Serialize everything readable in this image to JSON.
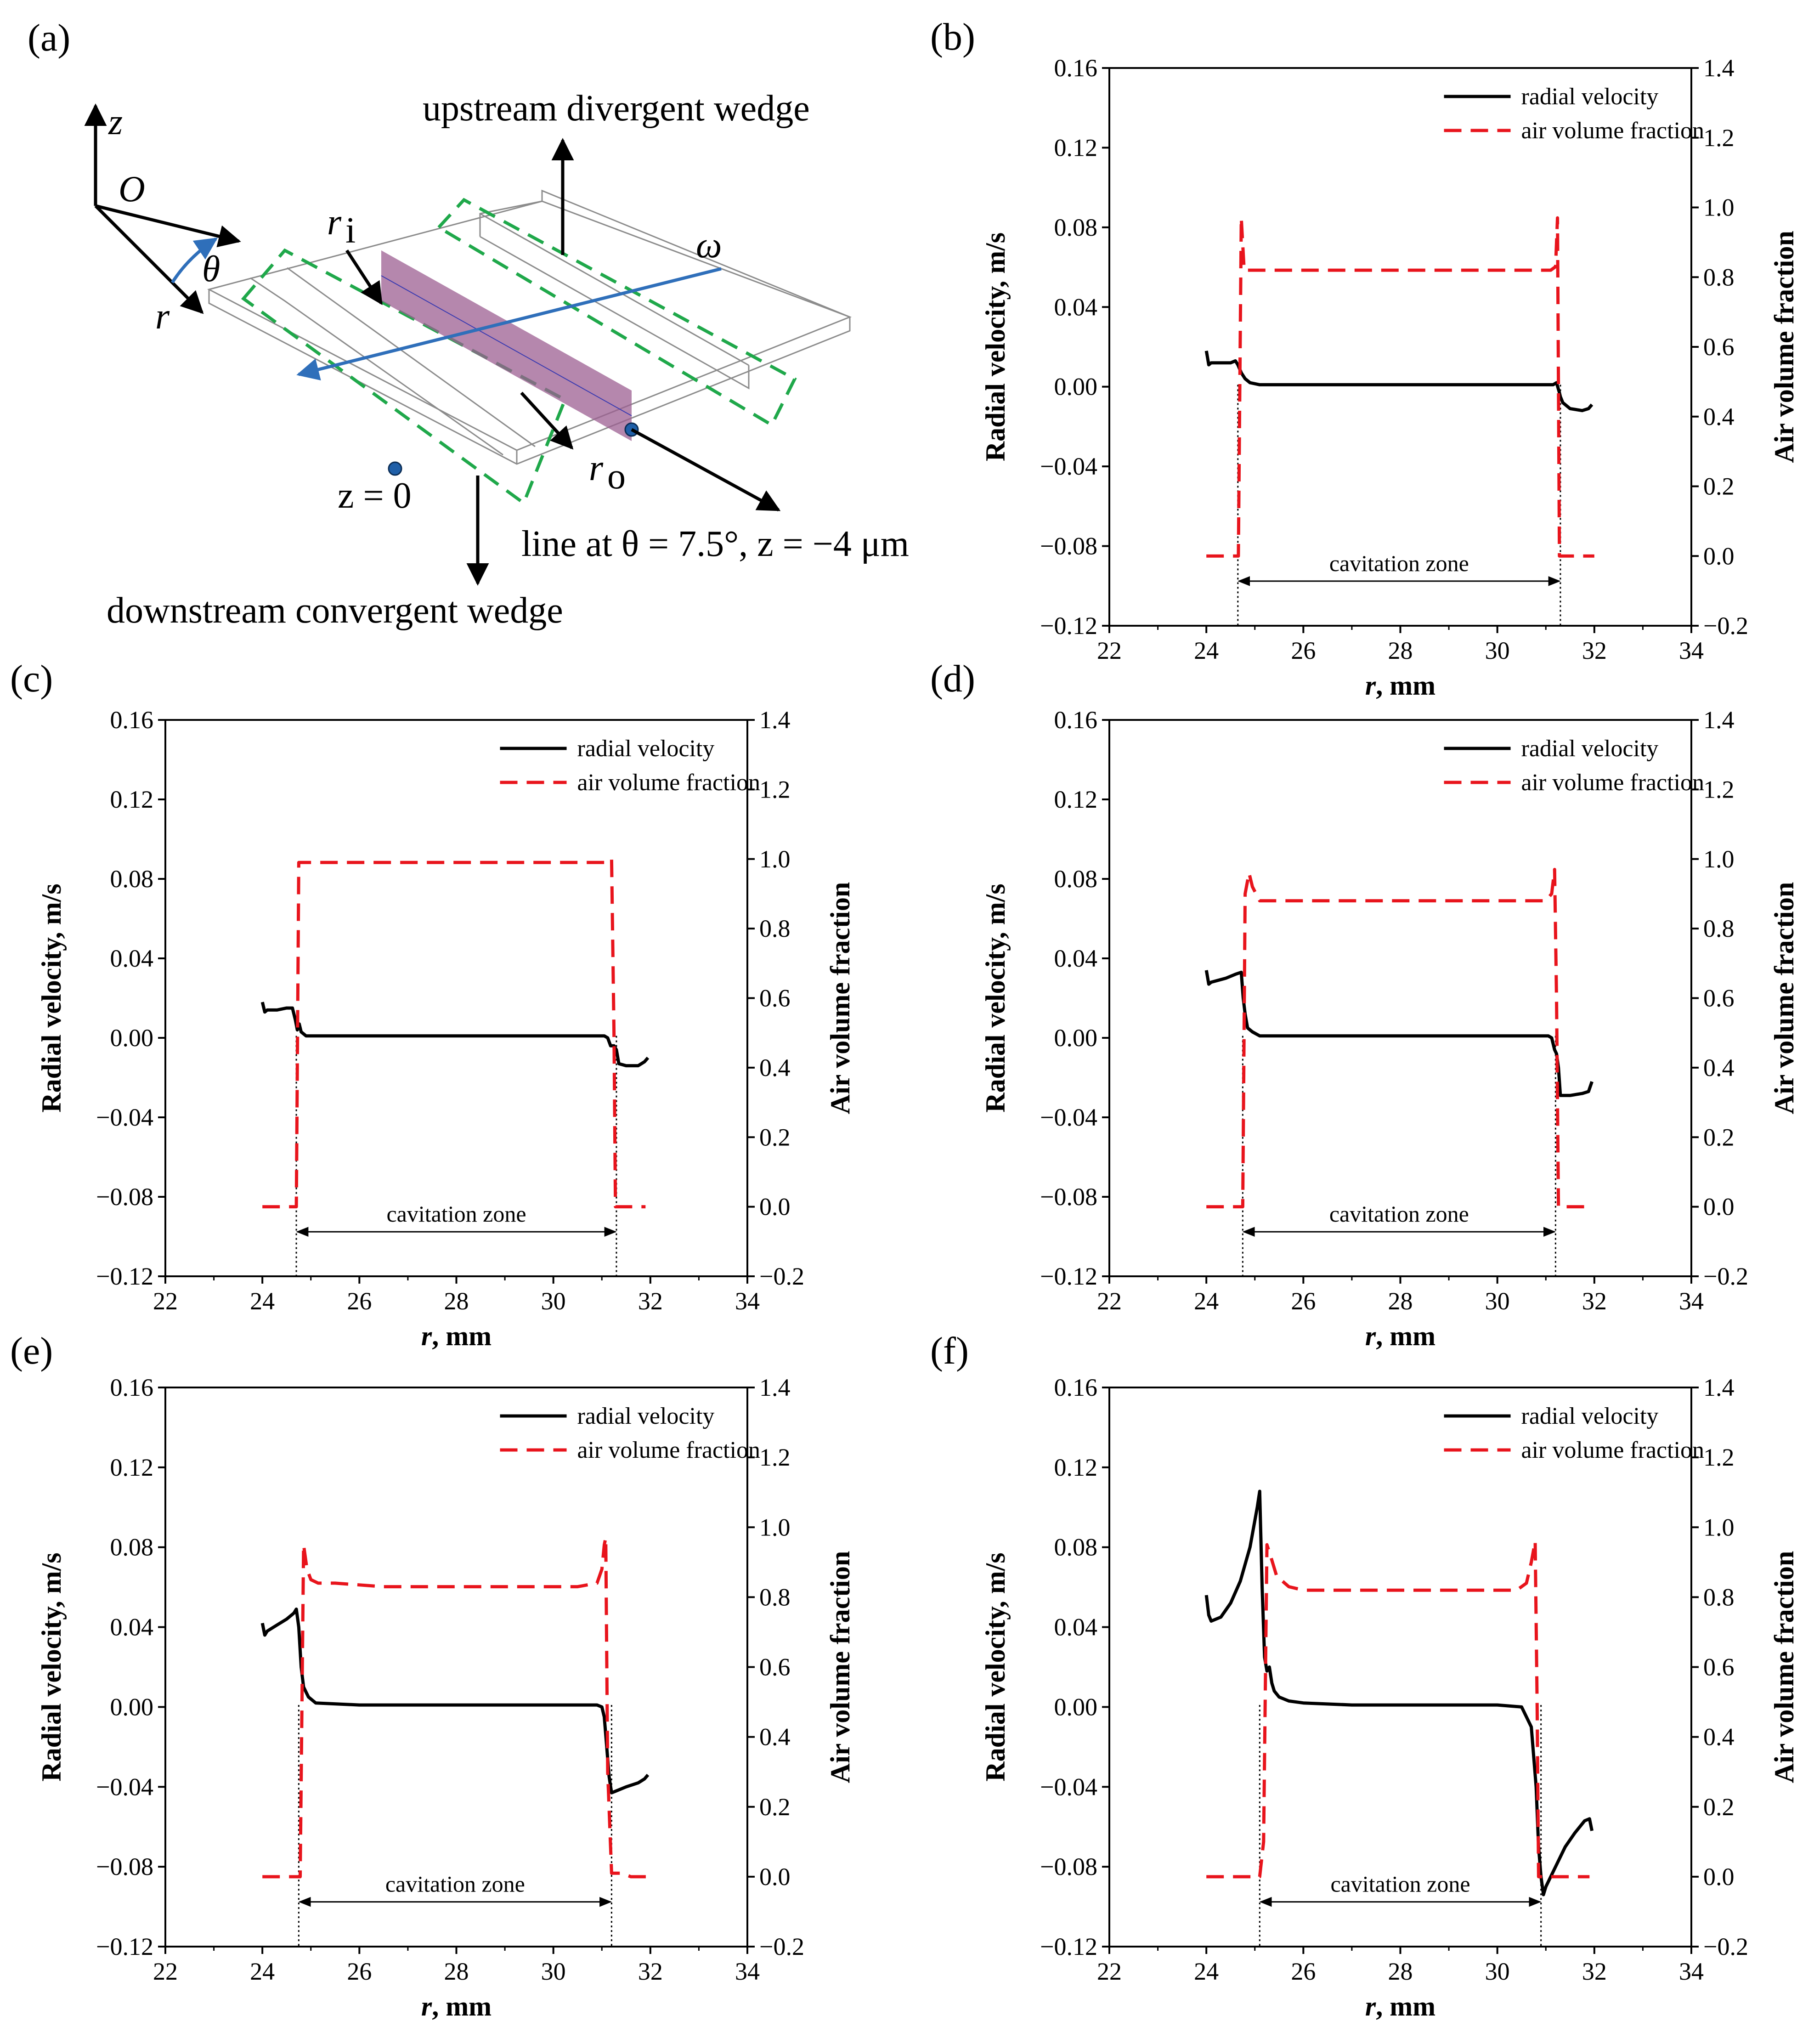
{
  "schematic": {
    "panel_label": "(a)",
    "axis_z": "z",
    "origin": "O",
    "axis_theta": "θ",
    "axis_r": "r",
    "ri_main": "r",
    "ri_sub": "i",
    "ro_main": "r",
    "ro_sub": "o",
    "omega": "ω",
    "upstream_label": "upstream divergent wedge",
    "downstream_label": "downstream convergent wedge",
    "z_zero_label": "z = 0",
    "line_label": "line at θ = 7.5°, z = −4 μm"
  },
  "colors": {
    "velocity": "#000000",
    "air": "#e8141c",
    "wedge": "#1fa84a",
    "arrow_blue": "#2f6fba",
    "plane_fill": "#9c5f92",
    "point": "#1f5fa8"
  },
  "chart_data": [
    {
      "panel": "(b)",
      "type": "line",
      "xlabel": "r, mm",
      "ylabel": "Radial velocity, m/s",
      "y2label": "Air volume fraction",
      "xlim": [
        22,
        34
      ],
      "ylim": [
        -0.12,
        0.16
      ],
      "y2lim": [
        -0.2,
        1.4
      ],
      "x_ticks": [
        "22",
        "24",
        "26",
        "28",
        "30",
        "32",
        "34"
      ],
      "y_ticks": [
        "−0.12",
        "−0.08",
        "−0.04",
        "0.00",
        "0.04",
        "0.08",
        "0.12",
        "0.16"
      ],
      "y2_ticks": [
        "−0.2",
        "0.0",
        "0.2",
        "0.4",
        "0.6",
        "0.8",
        "1.0",
        "1.2",
        "1.4"
      ],
      "legend": [
        "radial velocity",
        "air volume fraction"
      ],
      "annotation": "cavitation zone",
      "zone": [
        24.65,
        31.3
      ],
      "series": [
        {
          "name": "radial velocity",
          "x": [
            24.0,
            24.05,
            24.1,
            24.3,
            24.5,
            24.6,
            24.65,
            24.72,
            24.8,
            24.9,
            25.1,
            26,
            28,
            30,
            31.05,
            31.15,
            31.22,
            31.28,
            31.3,
            31.35,
            31.5,
            31.75,
            31.88,
            31.95
          ],
          "y": [
            0.018,
            0.011,
            0.012,
            0.012,
            0.012,
            0.013,
            0.011,
            0.007,
            0.004,
            0.002,
            0.001,
            0.001,
            0.001,
            0.001,
            0.001,
            0.001,
            0.002,
            -0.003,
            -0.005,
            -0.008,
            -0.011,
            -0.012,
            -0.011,
            -0.009
          ]
        },
        {
          "name": "air volume fraction",
          "x": [
            24.0,
            24.5,
            24.6,
            24.66,
            24.72,
            24.78,
            24.9,
            25.5,
            26.5,
            27.5,
            28.5,
            29.5,
            30.5,
            31.1,
            31.2,
            31.24,
            31.28,
            31.32,
            31.45,
            31.55,
            31.65,
            31.8,
            32.0
          ],
          "y": [
            0.0,
            0.0,
            0.0,
            0.0,
            0.97,
            0.82,
            0.82,
            0.82,
            0.82,
            0.82,
            0.82,
            0.82,
            0.82,
            0.82,
            0.83,
            0.97,
            0.0,
            0.0,
            0.0,
            0.0,
            0.0,
            0.0,
            0.0
          ]
        }
      ]
    },
    {
      "panel": "(c)",
      "type": "line",
      "xlabel": "r, mm",
      "ylabel": "Radial velocity, m/s",
      "y2label": "Air volume fraction",
      "xlim": [
        22,
        34
      ],
      "ylim": [
        -0.12,
        0.16
      ],
      "y2lim": [
        -0.2,
        1.4
      ],
      "x_ticks": [
        "22",
        "24",
        "26",
        "28",
        "30",
        "32",
        "34"
      ],
      "y_ticks": [
        "−0.12",
        "−0.08",
        "−0.04",
        "0.00",
        "0.04",
        "0.08",
        "0.12",
        "0.16"
      ],
      "y2_ticks": [
        "−0.2",
        "0.0",
        "0.2",
        "0.4",
        "0.6",
        "0.8",
        "1.0",
        "1.2",
        "1.4"
      ],
      "legend": [
        "radial velocity",
        "air volume fraction"
      ],
      "annotation": "cavitation zone",
      "zone": [
        24.7,
        31.3
      ],
      "series": [
        {
          "name": "radial velocity",
          "x": [
            24.0,
            24.05,
            24.1,
            24.3,
            24.5,
            24.62,
            24.68,
            24.72,
            24.76,
            24.8,
            24.9,
            25.1,
            26,
            28,
            30,
            31.05,
            31.12,
            31.18,
            31.25,
            31.3,
            31.35,
            31.5,
            31.75,
            31.88,
            31.95
          ],
          "y": [
            0.018,
            0.013,
            0.014,
            0.014,
            0.015,
            0.015,
            0.009,
            0.004,
            0.007,
            0.003,
            0.001,
            0.001,
            0.001,
            0.001,
            0.001,
            0.001,
            0.0,
            -0.004,
            -0.004,
            -0.006,
            -0.013,
            -0.014,
            -0.014,
            -0.012,
            -0.01
          ]
        },
        {
          "name": "air volume fraction",
          "x": [
            24.0,
            24.55,
            24.65,
            24.7,
            24.75,
            24.85,
            25.5,
            26.5,
            27.5,
            28.5,
            29.5,
            30.5,
            31.1,
            31.2,
            31.25,
            31.28,
            31.35,
            31.45,
            31.6,
            31.75,
            31.9
          ],
          "y": [
            0.0,
            0.0,
            0.0,
            0.0,
            0.99,
            0.99,
            0.99,
            0.99,
            0.99,
            0.99,
            0.99,
            0.99,
            0.99,
            1.0,
            0.5,
            0.0,
            0.0,
            0.0,
            0.0,
            0.0,
            0.0
          ]
        }
      ]
    },
    {
      "panel": "(d)",
      "type": "line",
      "xlabel": "r, mm",
      "ylabel": "Radial velocity, m/s",
      "y2label": "Air volume fraction",
      "xlim": [
        22,
        34
      ],
      "ylim": [
        -0.12,
        0.16
      ],
      "y2lim": [
        -0.2,
        1.4
      ],
      "x_ticks": [
        "22",
        "24",
        "26",
        "28",
        "30",
        "32",
        "34"
      ],
      "y_ticks": [
        "−0.12",
        "−0.08",
        "−0.04",
        "0.00",
        "0.04",
        "0.08",
        "0.12",
        "0.16"
      ],
      "y2_ticks": [
        "−0.2",
        "0.0",
        "0.2",
        "0.4",
        "0.6",
        "0.8",
        "1.0",
        "1.2",
        "1.4"
      ],
      "legend": [
        "radial velocity",
        "air volume fraction"
      ],
      "annotation": "cavitation zone",
      "zone": [
        24.75,
        31.2
      ],
      "series": [
        {
          "name": "radial velocity",
          "x": [
            24.0,
            24.05,
            24.1,
            24.4,
            24.6,
            24.72,
            24.76,
            24.8,
            24.85,
            24.95,
            25.1,
            26,
            28,
            30,
            31.05,
            31.12,
            31.18,
            31.22,
            31.26,
            31.3,
            31.5,
            31.75,
            31.88,
            31.95
          ],
          "y": [
            0.034,
            0.027,
            0.028,
            0.03,
            0.032,
            0.033,
            0.02,
            0.012,
            0.005,
            0.003,
            0.001,
            0.001,
            0.001,
            0.001,
            0.001,
            0.0,
            -0.006,
            -0.008,
            -0.015,
            -0.029,
            -0.029,
            -0.028,
            -0.027,
            -0.022
          ]
        },
        {
          "name": "air volume fraction",
          "x": [
            24.0,
            24.5,
            24.7,
            24.75,
            24.8,
            24.88,
            24.95,
            25.1,
            25.5,
            26.5,
            27.5,
            28.5,
            29.5,
            30.5,
            31.0,
            31.12,
            31.18,
            31.22,
            31.26,
            31.35,
            31.5,
            31.7,
            31.9
          ],
          "y": [
            0.0,
            0.0,
            0.0,
            0.0,
            0.9,
            0.96,
            0.92,
            0.88,
            0.88,
            0.88,
            0.88,
            0.88,
            0.88,
            0.88,
            0.88,
            0.9,
            0.97,
            0.6,
            0.0,
            0.0,
            0.0,
            0.0,
            0.0
          ]
        }
      ]
    },
    {
      "panel": "(e)",
      "type": "line",
      "xlabel": "r, mm",
      "ylabel": "Radial velocity, m/s",
      "y2label": "Air volume fraction",
      "xlim": [
        22,
        34
      ],
      "ylim": [
        -0.12,
        0.16
      ],
      "y2lim": [
        -0.2,
        1.4
      ],
      "x_ticks": [
        "22",
        "24",
        "26",
        "28",
        "30",
        "32",
        "34"
      ],
      "y_ticks": [
        "−0.12",
        "−0.08",
        "−0.04",
        "0.00",
        "0.04",
        "0.08",
        "0.12",
        "0.16"
      ],
      "y2_ticks": [
        "−0.2",
        "0.0",
        "0.2",
        "0.4",
        "0.6",
        "0.8",
        "1.0",
        "1.2",
        "1.4"
      ],
      "legend": [
        "radial velocity",
        "air volume fraction"
      ],
      "annotation": "cavitation zone",
      "zone": [
        24.75,
        31.2
      ],
      "series": [
        {
          "name": "radial velocity",
          "x": [
            24.0,
            24.05,
            24.1,
            24.3,
            24.5,
            24.65,
            24.7,
            24.75,
            24.8,
            24.85,
            24.95,
            25.1,
            26,
            28,
            30,
            30.9,
            31.0,
            31.05,
            31.1,
            31.15,
            31.2,
            31.3,
            31.5,
            31.75,
            31.88,
            31.95
          ],
          "y": [
            0.042,
            0.036,
            0.038,
            0.041,
            0.044,
            0.047,
            0.049,
            0.04,
            0.02,
            0.01,
            0.005,
            0.002,
            0.001,
            0.001,
            0.001,
            0.001,
            0.0,
            -0.005,
            -0.02,
            -0.035,
            -0.043,
            -0.042,
            -0.04,
            -0.038,
            -0.036,
            -0.034
          ]
        },
        {
          "name": "air volume fraction",
          "x": [
            24.0,
            24.5,
            24.7,
            24.78,
            24.85,
            24.92,
            25.0,
            25.15,
            25.5,
            26.5,
            27.5,
            28.5,
            29.5,
            30.5,
            30.9,
            31.0,
            31.05,
            31.08,
            31.12,
            31.2,
            31.4,
            31.6,
            31.8,
            32.0
          ],
          "y": [
            0.0,
            0.0,
            0.0,
            0.0,
            0.95,
            0.88,
            0.85,
            0.84,
            0.84,
            0.83,
            0.83,
            0.83,
            0.83,
            0.83,
            0.84,
            0.88,
            0.95,
            0.97,
            0.3,
            0.01,
            0.01,
            0.0,
            0.0,
            0.0
          ]
        }
      ]
    },
    {
      "panel": "(f)",
      "type": "line",
      "xlabel": "r, mm",
      "ylabel": "Radial velocity, m/s",
      "y2label": "Air volume fraction",
      "xlim": [
        22,
        34
      ],
      "ylim": [
        -0.12,
        0.16
      ],
      "y2lim": [
        -0.2,
        1.4
      ],
      "x_ticks": [
        "22",
        "24",
        "26",
        "28",
        "30",
        "32",
        "34"
      ],
      "y_ticks": [
        "−0.12",
        "−0.08",
        "−0.04",
        "0.00",
        "0.04",
        "0.08",
        "0.12",
        "0.16"
      ],
      "y2_ticks": [
        "−0.2",
        "0.0",
        "0.2",
        "0.4",
        "0.6",
        "0.8",
        "1.0",
        "1.2",
        "1.4"
      ],
      "legend": [
        "radial velocity",
        "air volume fraction"
      ],
      "annotation": "cavitation zone",
      "zone": [
        25.1,
        30.9
      ],
      "series": [
        {
          "name": "radial velocity",
          "x": [
            24.0,
            24.05,
            24.1,
            24.3,
            24.5,
            24.7,
            24.9,
            25.05,
            25.1,
            25.15,
            25.2,
            25.25,
            25.3,
            25.35,
            25.4,
            25.5,
            25.7,
            26,
            27,
            28,
            29,
            30,
            30.5,
            30.7,
            30.8,
            30.85,
            30.9,
            30.95,
            31.0,
            31.2,
            31.4,
            31.6,
            31.8,
            31.9,
            31.95
          ],
          "y": [
            0.056,
            0.046,
            0.043,
            0.045,
            0.052,
            0.063,
            0.08,
            0.1,
            0.108,
            0.06,
            0.025,
            0.018,
            0.02,
            0.012,
            0.008,
            0.005,
            0.003,
            0.002,
            0.001,
            0.001,
            0.001,
            0.001,
            0.0,
            -0.01,
            -0.04,
            -0.07,
            -0.085,
            -0.094,
            -0.09,
            -0.08,
            -0.07,
            -0.063,
            -0.057,
            -0.056,
            -0.062
          ]
        },
        {
          "name": "air volume fraction",
          "x": [
            24.0,
            24.5,
            25.0,
            25.1,
            25.18,
            25.25,
            25.32,
            25.45,
            25.7,
            26,
            27,
            28,
            29,
            30,
            30.4,
            30.6,
            30.7,
            30.78,
            30.82,
            30.85,
            31.0,
            31.3,
            31.6,
            31.9
          ],
          "y": [
            0.0,
            0.0,
            0.0,
            0.0,
            0.1,
            0.95,
            0.92,
            0.86,
            0.83,
            0.82,
            0.82,
            0.82,
            0.82,
            0.82,
            0.82,
            0.84,
            0.9,
            0.96,
            0.5,
            0.0,
            0.0,
            0.0,
            0.0,
            0.0
          ]
        }
      ]
    }
  ]
}
